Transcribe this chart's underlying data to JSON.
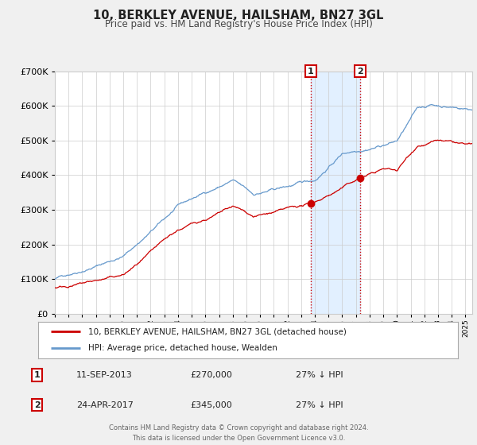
{
  "title": "10, BERKLEY AVENUE, HAILSHAM, BN27 3GL",
  "subtitle": "Price paid vs. HM Land Registry's House Price Index (HPI)",
  "legend_line1": "10, BERKLEY AVENUE, HAILSHAM, BN27 3GL (detached house)",
  "legend_line2": "HPI: Average price, detached house, Wealden",
  "annotation1_date": "11-SEP-2013",
  "annotation1_price": "£270,000",
  "annotation1_hpi": "27% ↓ HPI",
  "annotation1_year": 2013.7,
  "annotation2_date": "24-APR-2017",
  "annotation2_price": "£345,000",
  "annotation2_hpi": "27% ↓ HPI",
  "annotation2_year": 2017.3,
  "red_color": "#cc0000",
  "blue_color": "#6699cc",
  "background_color": "#f0f0f0",
  "plot_bg_color": "#ffffff",
  "shade_color": "#ddeeff",
  "xmin": 1995.0,
  "xmax": 2025.5,
  "ymin": 0,
  "ymax": 700000,
  "yticks": [
    0,
    100000,
    200000,
    300000,
    400000,
    500000,
    600000,
    700000
  ],
  "footer1": "Contains HM Land Registry data © Crown copyright and database right 2024.",
  "footer2": "This data is licensed under the Open Government Licence v3.0."
}
